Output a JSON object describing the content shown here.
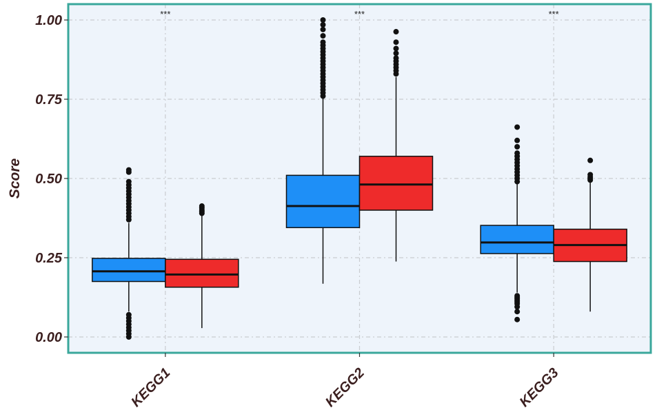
{
  "chart_data": {
    "type": "boxplot",
    "ylabel": "Score",
    "xlabel": "",
    "ylim": [
      -0.05,
      1.05
    ],
    "yticks": [
      0.0,
      0.25,
      0.5,
      0.75,
      1.0
    ],
    "ytick_labels": [
      "0.00",
      "0.25",
      "0.50",
      "0.75",
      "1.00"
    ],
    "grid": true,
    "categories": [
      "KEGG1",
      "KEGG2",
      "KEGG3"
    ],
    "significance": [
      "***",
      "***",
      "***"
    ],
    "colors": {
      "group1": "#1e8ff7",
      "group2": "#ee2b2b",
      "panel_bg": "#eef4fb",
      "border": "#3aa79b",
      "grid": "#c9ccd0"
    },
    "groups": [
      {
        "category": "KEGG1",
        "boxes": [
          {
            "color": "#1e8ff7",
            "whisker_low": 0.08,
            "q1": 0.175,
            "median": 0.207,
            "q3": 0.248,
            "whisker_high": 0.36,
            "outliers": [
              0.0,
              0.01,
              0.02,
              0.03,
              0.04,
              0.05,
              0.06,
              0.07,
              0.37,
              0.38,
              0.39,
              0.4,
              0.41,
              0.42,
              0.43,
              0.44,
              0.45,
              0.46,
              0.47,
              0.48,
              0.49,
              0.52,
              0.527
            ]
          },
          {
            "color": "#ee2b2b",
            "whisker_low": 0.028,
            "q1": 0.157,
            "median": 0.197,
            "q3": 0.245,
            "whisker_high": 0.383,
            "outliers": [
              0.39,
              0.395,
              0.4,
              0.407,
              0.413
            ]
          }
        ]
      },
      {
        "category": "KEGG2",
        "boxes": [
          {
            "color": "#1e8ff7",
            "whisker_low": 0.168,
            "q1": 0.345,
            "median": 0.413,
            "q3": 0.51,
            "whisker_high": 0.755,
            "outliers": [
              0.76,
              0.77,
              0.78,
              0.79,
              0.8,
              0.81,
              0.82,
              0.83,
              0.84,
              0.85,
              0.86,
              0.87,
              0.88,
              0.89,
              0.9,
              0.91,
              0.92,
              0.93,
              0.95,
              0.97,
              0.985,
              1.0
            ]
          },
          {
            "color": "#ee2b2b",
            "whisker_low": 0.238,
            "q1": 0.4,
            "median": 0.481,
            "q3": 0.57,
            "whisker_high": 0.82,
            "outliers": [
              0.83,
              0.84,
              0.85,
              0.86,
              0.87,
              0.88,
              0.895,
              0.91,
              0.93,
              0.963
            ]
          }
        ]
      },
      {
        "category": "KEGG3",
        "boxes": [
          {
            "color": "#1e8ff7",
            "whisker_low": 0.14,
            "q1": 0.263,
            "median": 0.298,
            "q3": 0.352,
            "whisker_high": 0.485,
            "outliers": [
              0.055,
              0.08,
              0.095,
              0.105,
              0.11,
              0.115,
              0.12,
              0.125,
              0.13,
              0.49,
              0.5,
              0.51,
              0.52,
              0.53,
              0.54,
              0.55,
              0.56,
              0.57,
              0.58,
              0.6,
              0.62,
              0.662
            ]
          },
          {
            "color": "#ee2b2b",
            "whisker_low": 0.08,
            "q1": 0.238,
            "median": 0.29,
            "q3": 0.34,
            "whisker_high": 0.49,
            "outliers": [
              0.495,
              0.5,
              0.505,
              0.512,
              0.557
            ]
          }
        ]
      }
    ]
  }
}
